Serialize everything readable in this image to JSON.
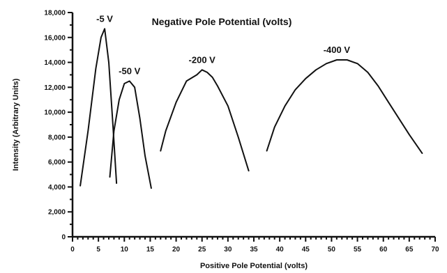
{
  "chart_data": {
    "type": "line",
    "title": "Negative Pole Potential (volts)",
    "xlabel": "Positive Pole Potential (volts)",
    "ylabel": "Intensity (Arbitrary Units)",
    "xlim": [
      0,
      70
    ],
    "ylim": [
      0,
      18000
    ],
    "xticks": [
      "0",
      "5",
      "10",
      "15",
      "20",
      "25",
      "30",
      "35",
      "40",
      "45",
      "50",
      "55",
      "60",
      "65",
      "70"
    ],
    "yticks": [
      "0",
      "2,000",
      "4,000",
      "6,000",
      "8,000",
      "10,000",
      "12,000",
      "14,000",
      "16,000",
      "18,000"
    ],
    "grid": false,
    "legend": "none",
    "series": [
      {
        "name": "-5 V",
        "x": [
          1.5,
          3,
          4.5,
          5.5,
          6.2,
          7,
          7.8,
          8.5
        ],
        "y": [
          4100,
          8500,
          13500,
          16000,
          16700,
          14000,
          9000,
          4300
        ]
      },
      {
        "name": "-50 V",
        "x": [
          7.2,
          8,
          9,
          10,
          11,
          12,
          13,
          14,
          15.2
        ],
        "y": [
          4800,
          8500,
          11000,
          12300,
          12500,
          12000,
          9500,
          6500,
          3900
        ]
      },
      {
        "name": "-200 V",
        "x": [
          17,
          18,
          20,
          22,
          24,
          25,
          26,
          27,
          28,
          30,
          32,
          34
        ],
        "y": [
          6900,
          8500,
          10800,
          12500,
          13000,
          13400,
          13200,
          12800,
          12100,
          10500,
          8000,
          5300
        ]
      },
      {
        "name": "-400 V",
        "x": [
          37.5,
          39,
          41,
          43,
          45,
          47,
          49,
          51,
          53,
          55,
          57,
          59,
          61,
          63,
          65,
          67.5
        ],
        "y": [
          6900,
          8800,
          10500,
          11800,
          12700,
          13400,
          13900,
          14200,
          14200,
          13900,
          13200,
          12100,
          10800,
          9500,
          8200,
          6700
        ]
      }
    ]
  }
}
